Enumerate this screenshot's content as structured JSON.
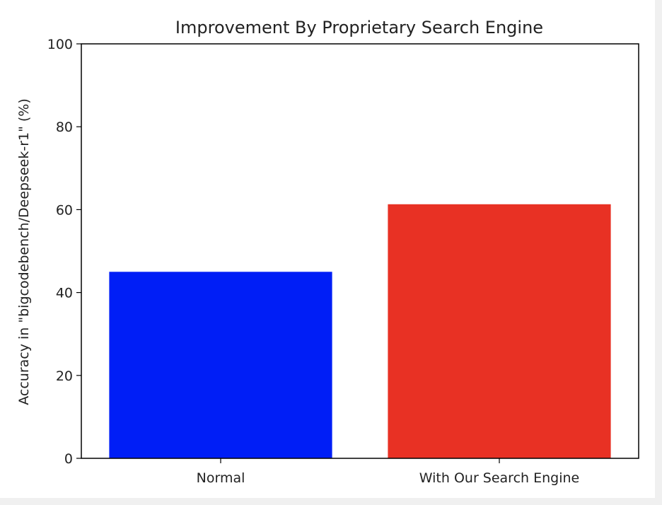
{
  "chart_data": {
    "type": "bar",
    "title": "Improvement By Proprietary Search Engine",
    "xlabel": "",
    "ylabel": "Accuracy in \"bigcodebench/Deepseek-r1\" (%)",
    "categories": [
      "Normal",
      "With Our Search Engine"
    ],
    "values": [
      45.0,
      61.3
    ],
    "colors": [
      "#001ef6",
      "#e83124"
    ],
    "ylim": [
      0,
      100
    ],
    "yticks": [
      0,
      20,
      40,
      60,
      80,
      100
    ],
    "grid": false,
    "legend": "none"
  }
}
